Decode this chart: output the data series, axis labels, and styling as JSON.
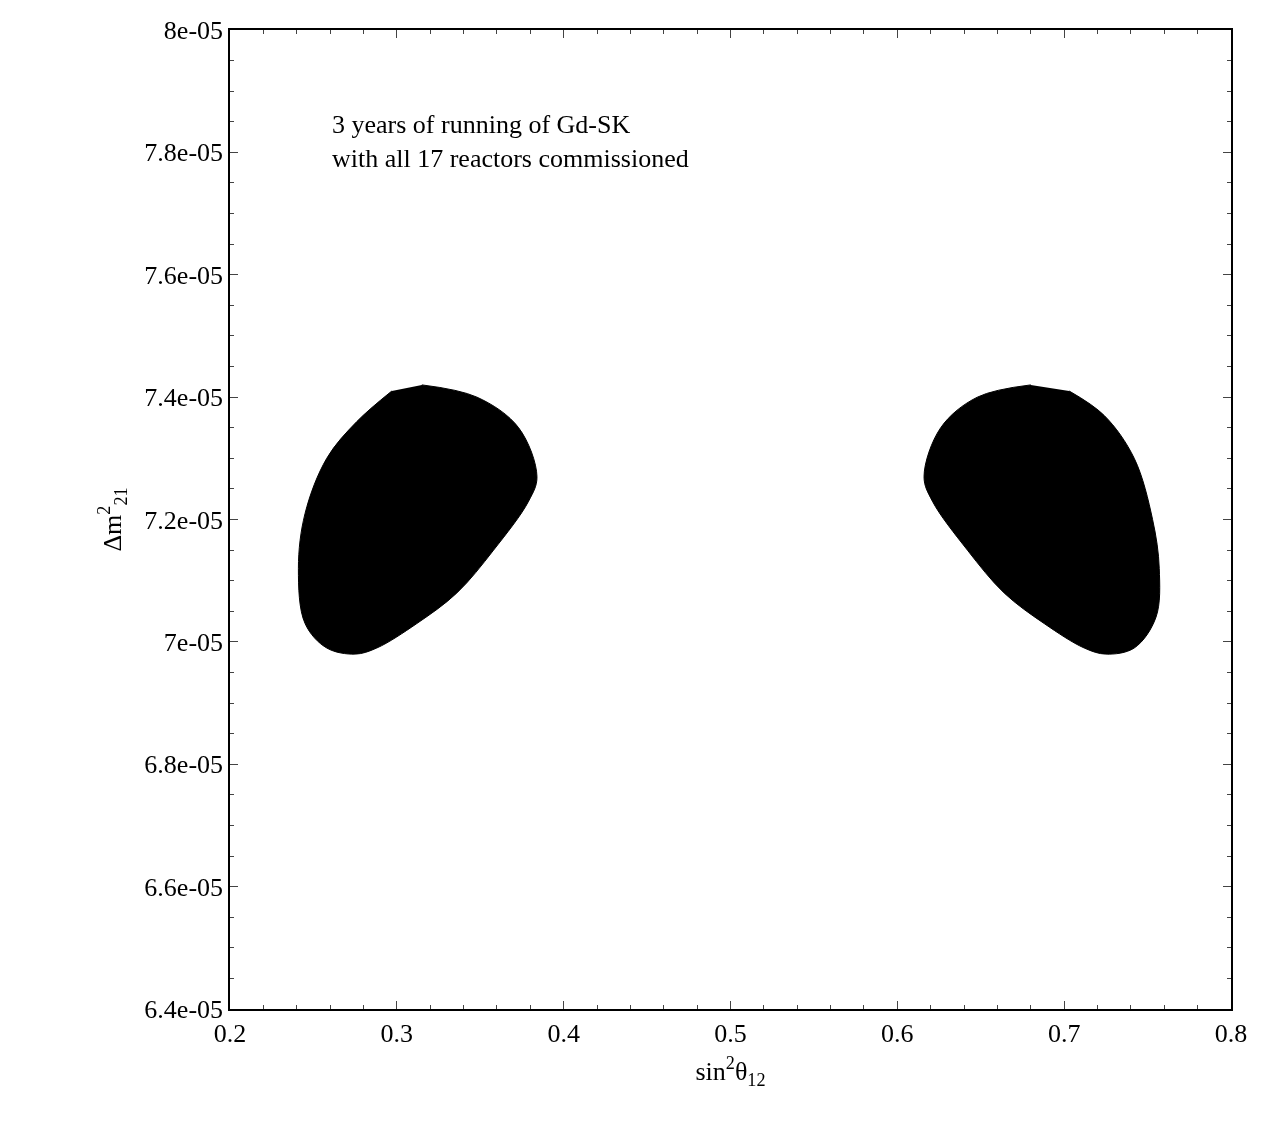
{
  "chart_data": {
    "type": "area",
    "xlabel": "sin$^{2}$θ$_{12}$",
    "ylabel": "Δm$^{2}$$_{21}$",
    "annotations": [
      "3 years of running of Gd-SK\nwith all 17 reactors commissioned"
    ],
    "xlim": [
      0.2,
      0.8
    ],
    "xticks": [
      0.2,
      0.3,
      0.4,
      0.5,
      0.6,
      0.7,
      0.8
    ],
    "ylim": [
      6.4e-05,
      8e-05
    ],
    "yticks": [
      {
        "value": 6.4e-05,
        "label": "6.4e-05"
      },
      {
        "value": 6.6e-05,
        "label": "6.6e-05"
      },
      {
        "value": 6.8e-05,
        "label": "6.8e-05"
      },
      {
        "value": 7e-05,
        "label": "7e-05"
      },
      {
        "value": 7.2e-05,
        "label": "7.2e-05"
      },
      {
        "value": 7.4e-05,
        "label": "7.4e-05"
      },
      {
        "value": 7.6e-05,
        "label": "7.6e-05"
      },
      {
        "value": 7.8e-05,
        "label": "7.8e-05"
      },
      {
        "value": 8e-05,
        "label": "8e-05"
      }
    ],
    "series": [
      {
        "color": "#000000",
        "x": [
          0.315,
          0.348,
          0.373,
          0.384,
          0.379,
          0.358,
          0.336,
          0.312,
          0.288,
          0.275,
          0.258,
          0.245,
          0.241,
          0.245,
          0.258,
          0.276,
          0.297
        ],
        "values": [
          7.42e-05,
          7.4e-05,
          7.35e-05,
          7.27e-05,
          7.23e-05,
          7.15e-05,
          7.08e-05,
          7.03e-05,
          6.99e-05,
          6.98e-05,
          6.99e-05,
          7.03e-05,
          7.12e-05,
          7.21e-05,
          7.3e-05,
          7.36e-05,
          7.41e-05
        ]
      },
      {
        "color": "#000000",
        "x": [
          0.68,
          0.648,
          0.626,
          0.616,
          0.621,
          0.642,
          0.664,
          0.688,
          0.712,
          0.725,
          0.742,
          0.755,
          0.757,
          0.753,
          0.742,
          0.724,
          0.703
        ],
        "values": [
          7.42e-05,
          7.4e-05,
          7.35e-05,
          7.27e-05,
          7.23e-05,
          7.15e-05,
          7.08e-05,
          7.03e-05,
          6.99e-05,
          6.98e-05,
          6.99e-05,
          7.04e-05,
          7.12e-05,
          7.2e-05,
          7.3e-05,
          7.37e-05,
          7.41e-05
        ]
      }
    ]
  }
}
